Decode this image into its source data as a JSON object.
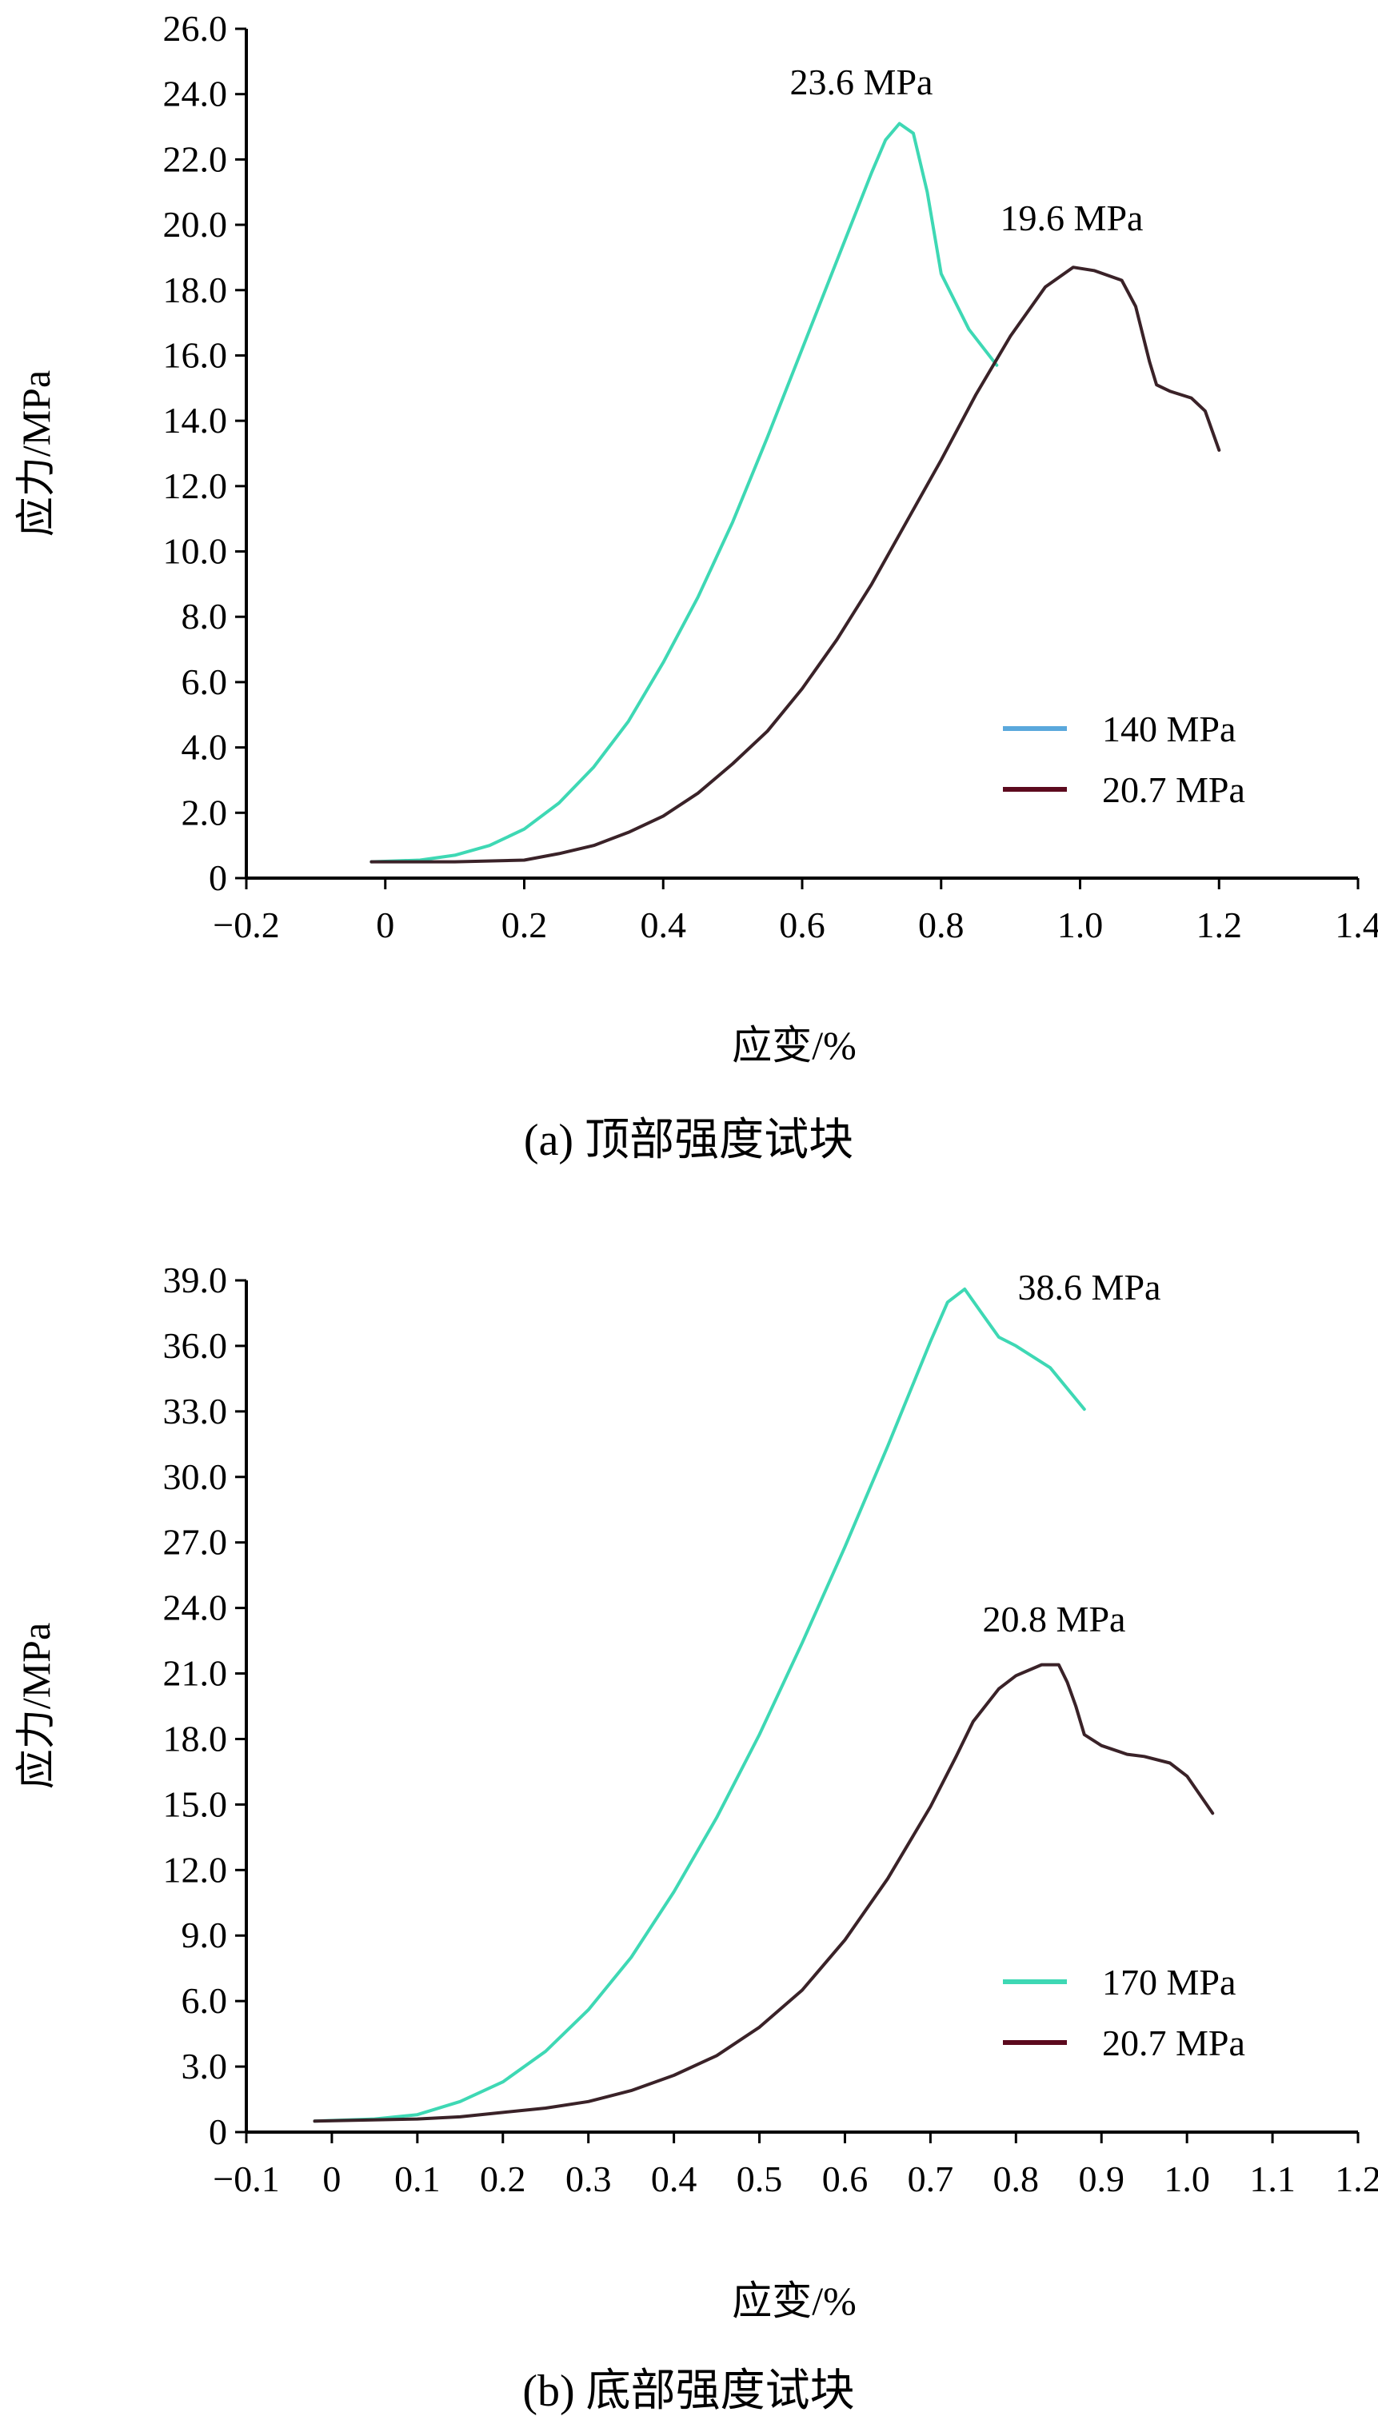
{
  "chart_data": [
    {
      "type": "line",
      "panel_caption": "(a) 顶部强度试块",
      "xlabel": "应变/%",
      "ylabel": "应力/MPa",
      "xlim": [
        -0.2,
        1.4
      ],
      "ylim": [
        0,
        26
      ],
      "x_ticks": [
        "−0.2",
        "0",
        "0.2",
        "0.4",
        "0.6",
        "0.8",
        "1.0",
        "1.2",
        "1.4"
      ],
      "y_ticks": [
        "0",
        "2.0",
        "4.0",
        "6.0",
        "8.0",
        "10.0",
        "12.0",
        "14.0",
        "16.0",
        "18.0",
        "20.0",
        "22.0",
        "24.0",
        "26.0"
      ],
      "grid": false,
      "legend_position": "lower-right",
      "series": [
        {
          "name": "140 MPa",
          "legend_color": "#5aa8dc",
          "line_color": "#3ed8b4",
          "x": [
            -0.02,
            0.05,
            0.1,
            0.15,
            0.2,
            0.25,
            0.3,
            0.35,
            0.4,
            0.45,
            0.5,
            0.55,
            0.6,
            0.65,
            0.7,
            0.72,
            0.74,
            0.76,
            0.78,
            0.8,
            0.84,
            0.88
          ],
          "y": [
            0.5,
            0.55,
            0.7,
            1.0,
            1.5,
            2.3,
            3.4,
            4.8,
            6.6,
            8.6,
            10.9,
            13.5,
            16.2,
            18.9,
            21.6,
            22.6,
            23.1,
            22.8,
            21.0,
            18.5,
            16.8,
            15.7
          ]
        },
        {
          "name": "20.7 MPa",
          "legend_color": "#5c0a1e",
          "line_color": "#3a2228",
          "x": [
            -0.02,
            0.1,
            0.2,
            0.25,
            0.3,
            0.35,
            0.4,
            0.45,
            0.5,
            0.55,
            0.6,
            0.65,
            0.7,
            0.75,
            0.8,
            0.85,
            0.9,
            0.95,
            0.99,
            1.02,
            1.06,
            1.08,
            1.1,
            1.11,
            1.13,
            1.16,
            1.18,
            1.2
          ],
          "y": [
            0.5,
            0.5,
            0.55,
            0.75,
            1.0,
            1.4,
            1.9,
            2.6,
            3.5,
            4.5,
            5.8,
            7.3,
            9.0,
            10.9,
            12.8,
            14.8,
            16.6,
            18.1,
            18.7,
            18.6,
            18.3,
            17.5,
            15.8,
            15.1,
            14.9,
            14.7,
            14.3,
            13.1
          ]
        }
      ],
      "annotations": [
        "23.6 MPa",
        "19.6 MPa"
      ]
    },
    {
      "type": "line",
      "panel_caption": "(b) 底部强度试块",
      "xlabel": "应变/%",
      "ylabel": "应力/MPa",
      "xlim": [
        -0.1,
        1.2
      ],
      "ylim": [
        0,
        39
      ],
      "x_ticks": [
        "−0.1",
        "0",
        "0.1",
        "0.2",
        "0.3",
        "0.4",
        "0.5",
        "0.6",
        "0.7",
        "0.8",
        "0.9",
        "1.0",
        "1.1",
        "1.2"
      ],
      "y_ticks": [
        "0",
        "3.0",
        "6.0",
        "9.0",
        "12.0",
        "15.0",
        "18.0",
        "21.0",
        "24.0",
        "27.0",
        "30.0",
        "33.0",
        "36.0",
        "39.0"
      ],
      "grid": false,
      "legend_position": "lower-right",
      "series": [
        {
          "name": "170 MPa",
          "legend_color": "#3ed8b4",
          "line_color": "#3ed8b4",
          "x": [
            -0.02,
            0.05,
            0.1,
            0.15,
            0.2,
            0.25,
            0.3,
            0.35,
            0.4,
            0.45,
            0.5,
            0.55,
            0.6,
            0.65,
            0.7,
            0.72,
            0.74,
            0.76,
            0.78,
            0.8,
            0.84,
            0.88
          ],
          "y": [
            0.5,
            0.6,
            0.8,
            1.4,
            2.3,
            3.7,
            5.6,
            8.0,
            11.0,
            14.4,
            18.2,
            22.4,
            26.8,
            31.4,
            36.2,
            38.0,
            38.6,
            37.5,
            36.4,
            36.0,
            35.0,
            33.1
          ]
        },
        {
          "name": "20.7 MPa",
          "legend_color": "#5c0a1e",
          "line_color": "#3a2228",
          "x": [
            -0.02,
            0.1,
            0.15,
            0.2,
            0.25,
            0.3,
            0.35,
            0.4,
            0.45,
            0.5,
            0.55,
            0.6,
            0.65,
            0.7,
            0.73,
            0.75,
            0.78,
            0.8,
            0.83,
            0.85,
            0.86,
            0.87,
            0.88,
            0.9,
            0.93,
            0.95,
            0.98,
            1.0,
            1.03
          ],
          "y": [
            0.5,
            0.6,
            0.7,
            0.9,
            1.1,
            1.4,
            1.9,
            2.6,
            3.5,
            4.8,
            6.5,
            8.8,
            11.6,
            14.9,
            17.2,
            18.8,
            20.3,
            20.9,
            21.4,
            21.4,
            20.6,
            19.5,
            18.2,
            17.7,
            17.3,
            17.2,
            16.9,
            16.3,
            14.6
          ]
        }
      ],
      "annotations": [
        "38.6 MPa",
        "20.8 MPa"
      ]
    }
  ]
}
